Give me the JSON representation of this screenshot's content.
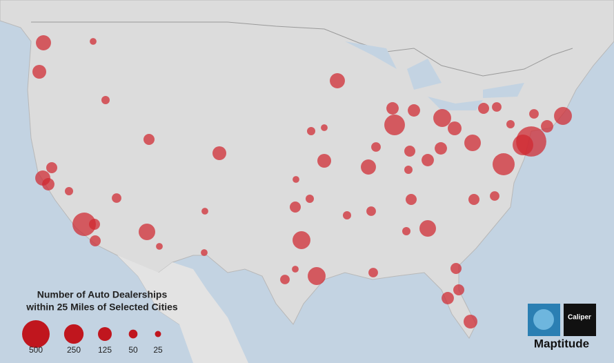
{
  "map": {
    "circle_color": "#d0272f",
    "circle_values": [
      150,
      30,
      125,
      45,
      80,
      150,
      100,
      45,
      360,
      80,
      80,
      60,
      180,
      30,
      80,
      125,
      30,
      30,
      210,
      210,
      60,
      30,
      80,
      45,
      125,
      30,
      45,
      150,
      280,
      100,
      210,
      125,
      180,
      100,
      80,
      100,
      150,
      45,
      80,
      60,
      180,
      80,
      60,
      320,
      280,
      600,
      210,
      100,
      60,
      80,
      60,
      80,
      80,
      100,
      125,
      45,
      60,
      45,
      30,
      100,
      60,
      45
    ],
    "legend": {
      "title_lines": [
        "Number of Auto Dealerships",
        "within 25 Miles of Selected Cities"
      ],
      "sizes": [
        500,
        250,
        125,
        50,
        25
      ],
      "color": "#c0161e"
    },
    "logo": {
      "badge": "Caliper",
      "name": "Maptitude"
    }
  }
}
